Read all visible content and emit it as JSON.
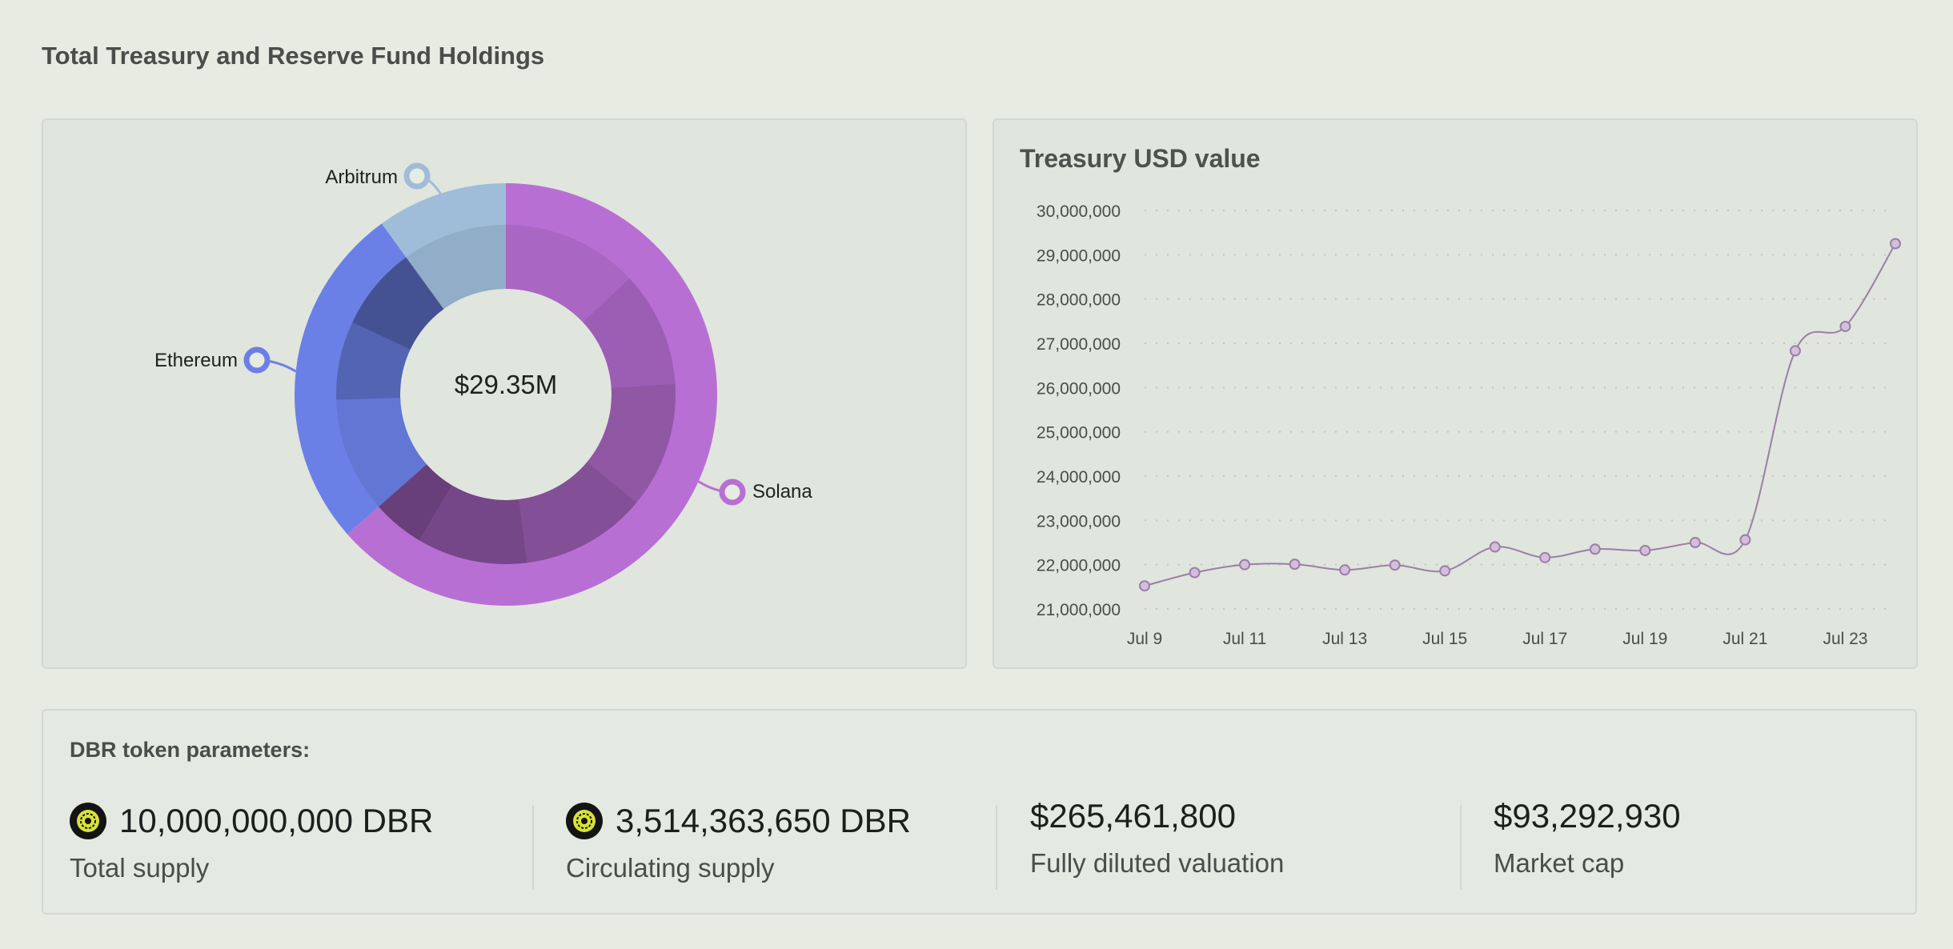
{
  "page": {
    "title": "Total Treasury and Reserve Fund Holdings"
  },
  "donut": {
    "center_label": "$29.35M",
    "labels": {
      "solana": "Solana",
      "ethereum": "Ethereum",
      "arbitrum": "Arbitrum"
    }
  },
  "line": {
    "title": "Treasury USD value"
  },
  "params": {
    "title": "DBR token parameters:",
    "total_supply_value": "10,000,000,000 DBR",
    "total_supply_label": "Total supply",
    "circulating_value": "3,514,363,650 DBR",
    "circulating_label": "Circulating supply",
    "fdv_value": "$265,461,800",
    "fdv_label": "Fully diluted valuation",
    "mcap_value": "$93,292,930",
    "mcap_label": "Market cap"
  },
  "chart_data": [
    {
      "type": "pie",
      "variant": "donut",
      "center_text": "$29.35M",
      "labels": [
        "Solana",
        "Ethereum",
        "Arbitrum"
      ],
      "values": [
        63.5,
        26.5,
        10.0
      ],
      "colors": [
        "#b86fd4",
        "#6b80e6",
        "#9fbcd9"
      ],
      "inner_ring_shares": [
        [
          13.0,
          11.0,
          12.0,
          12.0,
          10.5,
          5.0
        ],
        [
          11.0,
          7.5,
          8.0
        ],
        [
          10.0
        ]
      ]
    },
    {
      "type": "line",
      "title": "Treasury USD value",
      "x": [
        "Jul 9",
        "Jul 10",
        "Jul 11",
        "Jul 12",
        "Jul 13",
        "Jul 14",
        "Jul 15",
        "Jul 16",
        "Jul 17",
        "Jul 18",
        "Jul 19",
        "Jul 20",
        "Jul 21",
        "Jul 22",
        "Jul 23",
        "Jul 24"
      ],
      "x_tick_labels": [
        "Jul 9",
        "Jul 11",
        "Jul 13",
        "Jul 15",
        "Jul 17",
        "Jul 19",
        "Jul 21",
        "Jul 23"
      ],
      "series": [
        {
          "values": [
            21520000,
            21820000,
            22000000,
            22010000,
            21880000,
            21990000,
            21860000,
            22400000,
            22160000,
            22350000,
            22320000,
            22500000,
            22560000,
            26830000,
            27380000,
            29250000
          ],
          "color": "#9a7fa6"
        }
      ],
      "ylim": [
        21000000,
        30000000
      ],
      "y_ticks": [
        21000000,
        22000000,
        23000000,
        24000000,
        25000000,
        26000000,
        27000000,
        28000000,
        29000000,
        30000000
      ],
      "grid": "horizontal-dotted"
    }
  ]
}
